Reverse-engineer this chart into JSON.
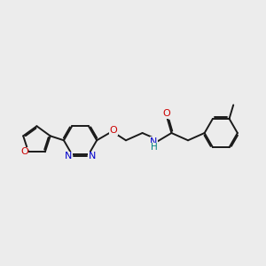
{
  "bg_color": "#ececec",
  "bond_color": "#1a1a1a",
  "nitrogen_color": "#0000cc",
  "oxygen_color": "#cc0000",
  "nh_color": "#008080",
  "lw": 1.4,
  "dbo": 0.055,
  "fs": 8.0,
  "figsize": [
    3.0,
    3.0
  ],
  "dpi": 100,
  "xlim": [
    -1.0,
    10.5
  ],
  "ylim": [
    -2.5,
    3.5
  ]
}
